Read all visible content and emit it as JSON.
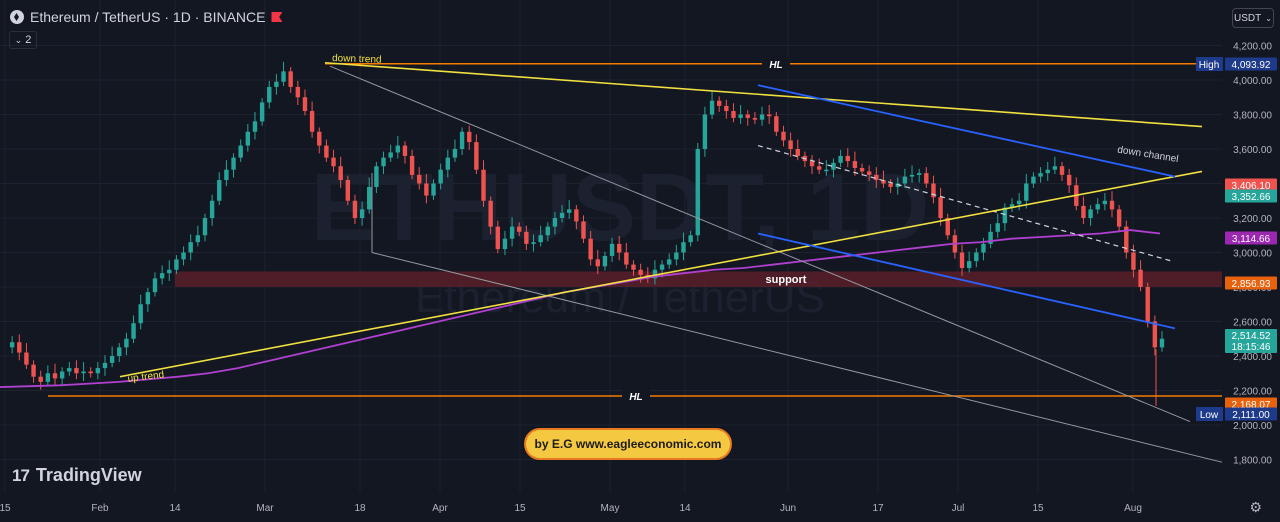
{
  "header": {
    "symbol": "Ethereum / TetherUS · 1D · BINANCE",
    "indicator_count": "2",
    "currency": "USDT"
  },
  "watermark": {
    "ticker": "ETHUSDT, 1D",
    "name": "Ethereum / TetherUS"
  },
  "branding": {
    "logo_text": "TradingView",
    "banner_text": "by E.G www.eagleeconomic.com"
  },
  "colors": {
    "background": "#131722",
    "up": "#26a69a",
    "down": "#ef5350",
    "yellow_line": "#f0e040",
    "blue_line": "#2962ff",
    "orange_line": "#f57c00",
    "ma_line": "#b040d0",
    "white_line": "#9598a1",
    "support_zone": "#5a1e28"
  },
  "chart_data": {
    "type": "candlestick",
    "title": "Ethereum / TetherUS · 1D · BINANCE",
    "x_ticks": [
      "15",
      "Feb",
      "14",
      "Mar",
      "18",
      "Apr",
      "15",
      "May",
      "14",
      "Jun",
      "17",
      "Jul",
      "15",
      "Aug"
    ],
    "y_ticks": [
      "4,200.00",
      "4,000.00",
      "3,800.00",
      "3,600.00",
      "3,400.00",
      "3,200.00",
      "3,000.00",
      "2,800.00",
      "2,600.00",
      "2,400.00",
      "2,200.00",
      "2,000.00",
      "1,800.00"
    ],
    "ylim": [
      1750,
      4250
    ],
    "close_path": [
      2450,
      2480,
      2420,
      2350,
      2280,
      2250,
      2300,
      2270,
      2310,
      2330,
      2300,
      2310,
      2300,
      2330,
      2360,
      2400,
      2450,
      2500,
      2590,
      2700,
      2770,
      2850,
      2880,
      2900,
      2960,
      3000,
      3060,
      3100,
      3200,
      3300,
      3420,
      3480,
      3550,
      3620,
      3700,
      3760,
      3870,
      3960,
      3990,
      4050,
      3960,
      3900,
      3820,
      3700,
      3620,
      3550,
      3500,
      3420,
      3300,
      3200,
      3250,
      3380,
      3500,
      3550,
      3580,
      3620,
      3560,
      3450,
      3400,
      3330,
      3400,
      3480,
      3550,
      3600,
      3700,
      3640,
      3480,
      3300,
      3150,
      3020,
      3080,
      3150,
      3120,
      3050,
      3060,
      3100,
      3150,
      3200,
      3230,
      3250,
      3180,
      3080,
      2960,
      2920,
      2980,
      3050,
      3000,
      2930,
      2900,
      2870,
      2850,
      2900,
      2930,
      2960,
      3000,
      3060,
      3100,
      3600,
      3800,
      3880,
      3850,
      3820,
      3780,
      3800,
      3780,
      3770,
      3800,
      3790,
      3700,
      3650,
      3600,
      3560,
      3530,
      3500,
      3480,
      3480,
      3520,
      3560,
      3530,
      3490,
      3470,
      3450,
      3420,
      3400,
      3380,
      3400,
      3440,
      3450,
      3460,
      3400,
      3320,
      3200,
      3100,
      3000,
      2910,
      2950,
      3000,
      3050,
      3120,
      3170,
      3260,
      3280,
      3300,
      3400,
      3440,
      3460,
      3480,
      3500,
      3450,
      3390,
      3270,
      3200,
      3250,
      3280,
      3300,
      3250,
      3150,
      3000,
      2900,
      2800,
      2600,
      2450,
      2500
    ],
    "series": [
      {
        "name": "",
        "values": [
          2220,
          2225,
          2230,
          2240,
          2250,
          2265,
          2280,
          2300,
          2330,
          2370,
          2410,
          2450,
          2490,
          2530,
          2570,
          2610,
          2650,
          2690,
          2730,
          2770,
          2800,
          2830,
          2860,
          2880,
          2900,
          2910,
          2930,
          2950,
          2970,
          2990,
          3010,
          3030,
          3050,
          3060,
          3080,
          3090,
          3100,
          3110,
          3130,
          3110
        ]
      }
    ],
    "trend_lines": [
      {
        "label": "up trend",
        "from": [
          "Feb",
          2300
        ],
        "to": [
          "Aug",
          3400
        ]
      },
      {
        "label": "down trend",
        "from": [
          "Mar",
          4100
        ],
        "to": [
          "Aug",
          3700
        ]
      },
      {
        "label": "down channel",
        "from": [
          "Jun",
          3990
        ],
        "to": [
          "Aug",
          3440
        ]
      }
    ],
    "horizontal_levels": [
      {
        "label": "HL",
        "value": 4093.92
      },
      {
        "label": "HL",
        "value": 2168.07
      }
    ],
    "zones": [
      {
        "label": "support",
        "from": 2800,
        "to": 2890
      }
    ],
    "price_labels": [
      {
        "label": "High",
        "value": "4,093.92",
        "color": "#1e3a8a"
      },
      {
        "label": "",
        "value": "3,406.10",
        "color": "#ef5350"
      },
      {
        "label": "",
        "value": "3,352.66",
        "color": "#26a69a"
      },
      {
        "label": "",
        "value": "3,114.66",
        "color": "#9c27b0"
      },
      {
        "label": "",
        "value": "2,856.93",
        "color": "#e8620e"
      },
      {
        "label": "",
        "value": "2,514.52",
        "sub": "18:15:46",
        "color": "#26a69a"
      },
      {
        "label": "",
        "value": "2,168.07",
        "color": "#e8620e"
      },
      {
        "label": "Low",
        "value": "2,111.00",
        "color": "#1e3a8a"
      }
    ]
  }
}
